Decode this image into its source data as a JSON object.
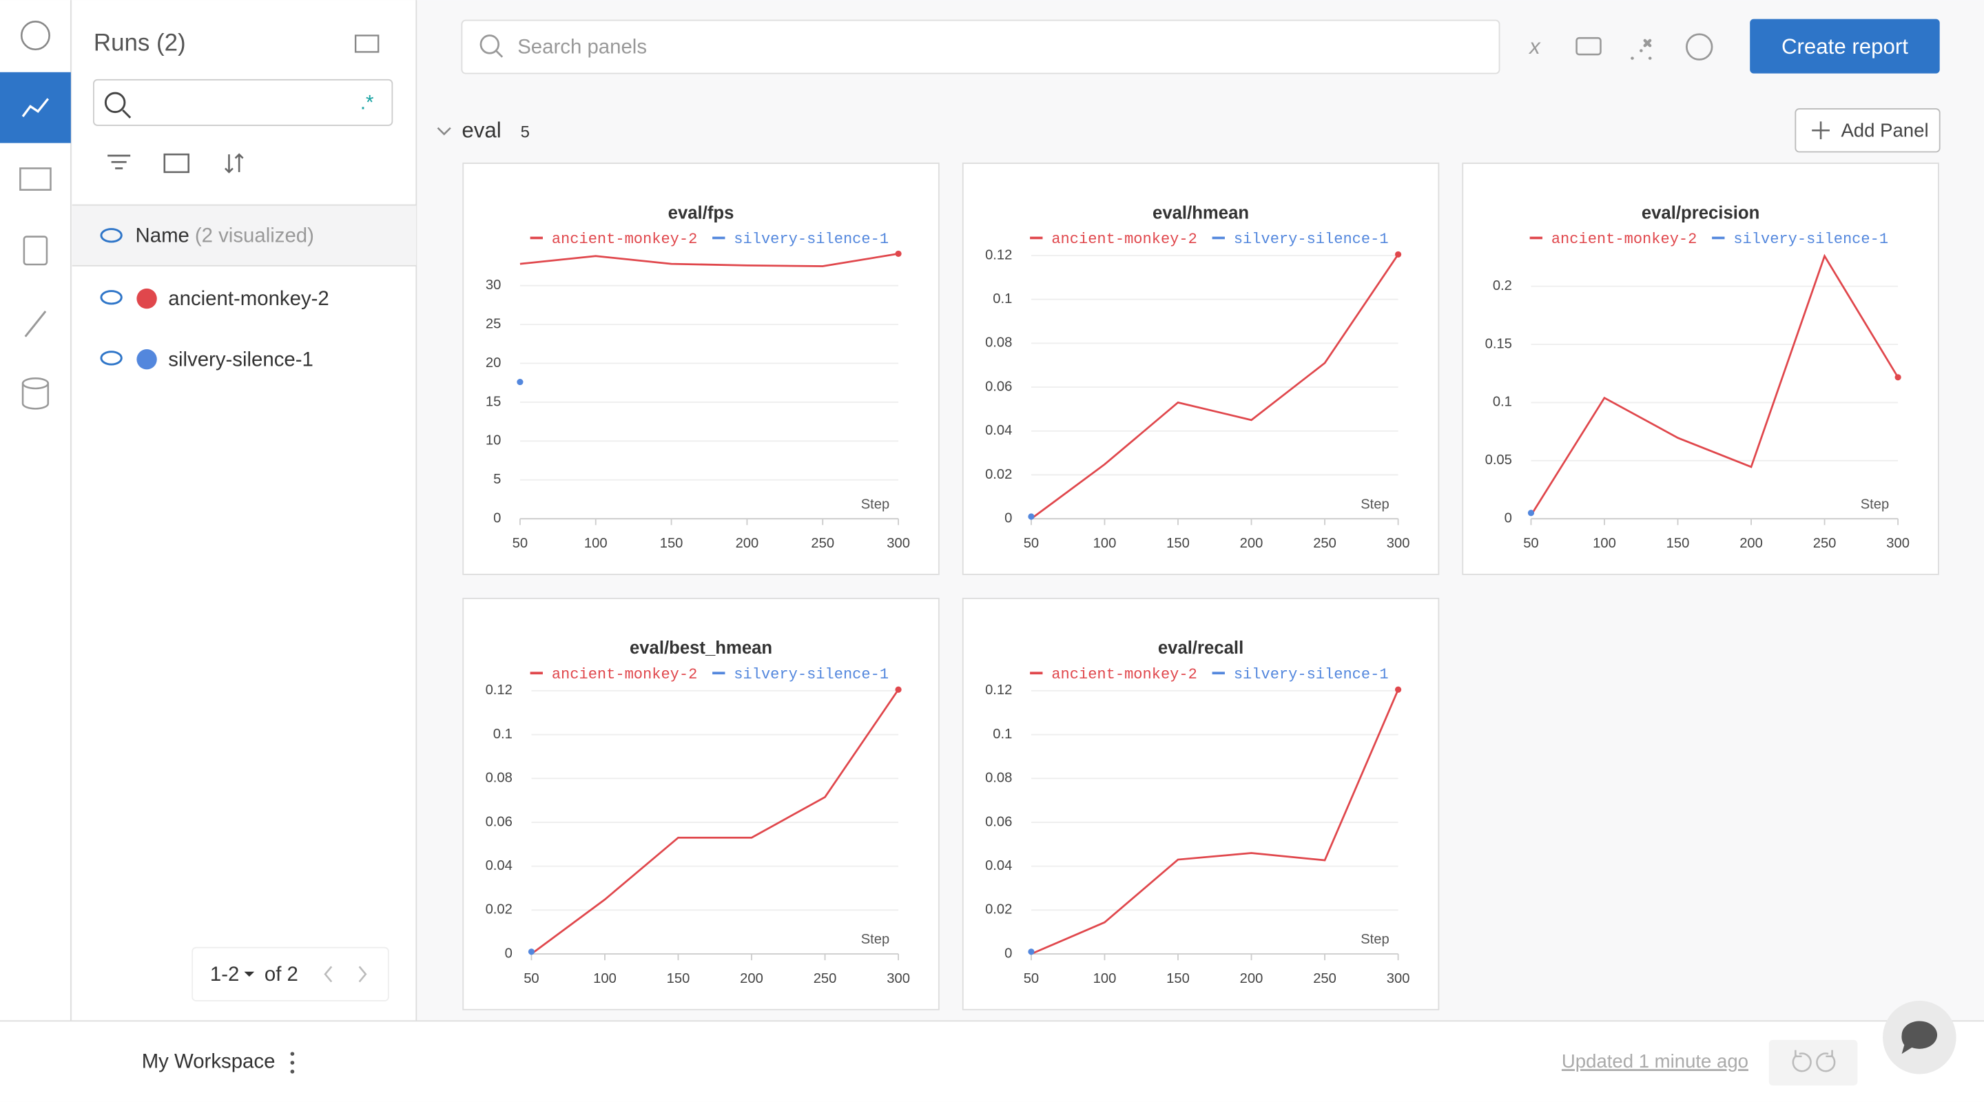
{
  "header": {
    "search_placeholder": "Search panels",
    "create_report": "Create report"
  },
  "sidebar": {
    "title": "Runs (2)",
    "name_column": "Name",
    "visualized": "(2 visualized)",
    "runs": [
      {
        "name": "ancient-monkey-2",
        "color": "#e0474c"
      },
      {
        "name": "silvery-silence-1",
        "color": "#5387dd"
      }
    ],
    "pagination": {
      "range": "1-2",
      "total": "of 2"
    }
  },
  "section": {
    "name": "eval",
    "count": 5,
    "add_panel": "Add Panel"
  },
  "panels": [
    {
      "type": "line",
      "title": "eval/fps",
      "x_label": "Step",
      "x": [
        50,
        100,
        150,
        200,
        250,
        300
      ],
      "xlim": [
        50,
        300
      ],
      "xticks": [
        50,
        100,
        150,
        200,
        250,
        300
      ],
      "ylim": [
        0,
        35
      ],
      "yticks": [
        0,
        5,
        10,
        15,
        20,
        25,
        30
      ],
      "series": [
        {
          "name": "ancient-monkey-2",
          "color": "#e0474c",
          "values": [
            32.8,
            33.8,
            32.8,
            32.6,
            32.5,
            34.1
          ]
        },
        {
          "name": "silvery-silence-1",
          "color": "#5387dd",
          "values": [
            17.6,
            null,
            null,
            null,
            null,
            null
          ]
        }
      ]
    },
    {
      "type": "line",
      "title": "eval/hmean",
      "x_label": "Step",
      "x": [
        50,
        100,
        150,
        200,
        250,
        300
      ],
      "xlim": [
        50,
        300
      ],
      "xticks": [
        50,
        100,
        150,
        200,
        250,
        300
      ],
      "ylim": [
        0,
        0.124
      ],
      "yticks": [
        0,
        0.02,
        0.04,
        0.06,
        0.08,
        0.1,
        0.12
      ],
      "series": [
        {
          "name": "ancient-monkey-2",
          "color": "#e0474c",
          "values": [
            0,
            0.0248,
            0.053,
            0.045,
            0.071,
            0.1205
          ]
        },
        {
          "name": "silvery-silence-1",
          "color": "#5387dd",
          "values": [
            0.001,
            null,
            null,
            null,
            null,
            null
          ]
        }
      ]
    },
    {
      "type": "line",
      "title": "eval/precision",
      "x_label": "Step",
      "x": [
        50,
        100,
        150,
        200,
        250,
        300
      ],
      "xlim": [
        50,
        300
      ],
      "xticks": [
        50,
        100,
        150,
        200,
        250,
        300
      ],
      "ylim": [
        0,
        0.234
      ],
      "yticks": [
        0,
        0.05,
        0.1,
        0.15,
        0.2
      ],
      "series": [
        {
          "name": "ancient-monkey-2",
          "color": "#e0474c",
          "values": [
            0.003,
            0.104,
            0.0696,
            0.0446,
            0.226,
            0.1217
          ]
        },
        {
          "name": "silvery-silence-1",
          "color": "#5387dd",
          "values": [
            0.005,
            null,
            null,
            null,
            null,
            null
          ]
        }
      ]
    },
    {
      "type": "line",
      "title": "eval/best_hmean",
      "x_label": "Step",
      "x": [
        50,
        100,
        150,
        200,
        250,
        300
      ],
      "xlim": [
        50,
        300
      ],
      "xticks": [
        50,
        100,
        150,
        200,
        250,
        300
      ],
      "ylim": [
        0,
        0.124
      ],
      "yticks": [
        0,
        0.02,
        0.04,
        0.06,
        0.08,
        0.1,
        0.12
      ],
      "series": [
        {
          "name": "ancient-monkey-2",
          "color": "#e0474c",
          "values": [
            0,
            0.0248,
            0.053,
            0.053,
            0.0715,
            0.1205
          ]
        },
        {
          "name": "silvery-silence-1",
          "color": "#5387dd",
          "values": [
            0.001,
            null,
            null,
            null,
            null,
            null
          ]
        }
      ]
    },
    {
      "type": "line",
      "title": "eval/recall",
      "x_label": "Step",
      "x": [
        50,
        100,
        150,
        200,
        250,
        300
      ],
      "xlim": [
        50,
        300
      ],
      "xticks": [
        50,
        100,
        150,
        200,
        250,
        300
      ],
      "ylim": [
        0,
        0.124
      ],
      "yticks": [
        0,
        0.02,
        0.04,
        0.06,
        0.08,
        0.1,
        0.12
      ],
      "series": [
        {
          "name": "ancient-monkey-2",
          "color": "#e0474c",
          "values": [
            0,
            0.0144,
            0.043,
            0.046,
            0.0427,
            0.1205
          ]
        },
        {
          "name": "silvery-silence-1",
          "color": "#5387dd",
          "values": [
            0.001,
            null,
            null,
            null,
            null,
            null
          ]
        }
      ]
    }
  ],
  "footer": {
    "workspace": "My Workspace",
    "updated": "Updated 1 minute ago"
  }
}
